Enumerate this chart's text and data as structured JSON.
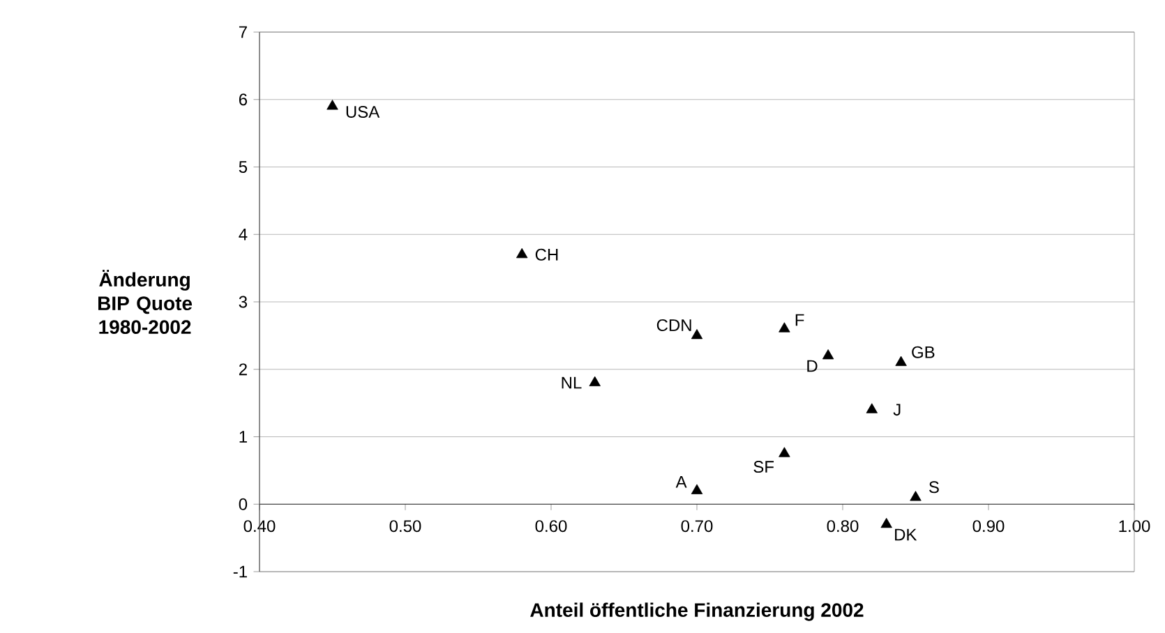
{
  "chart_data": {
    "type": "scatter",
    "xlabel": "Anteil öffentliche Finanzierung 2002",
    "ylabel": "Änderung BIP Quote 1980-2002",
    "x": [
      0.45,
      0.58,
      0.7,
      0.76,
      0.79,
      0.84,
      0.82,
      0.63,
      0.76,
      0.7,
      0.85,
      0.83
    ],
    "values": [
      5.9,
      3.7,
      2.5,
      2.6,
      2.2,
      2.1,
      1.4,
      1.8,
      0.75,
      0.2,
      0.1,
      -0.3
    ],
    "color": "#000000",
    "marker": "triangle",
    "grid": "y",
    "xlim": [
      0.4,
      1.0
    ],
    "xticks": [
      {
        "value": 0.4,
        "label": "0.40"
      },
      {
        "value": 0.5,
        "label": "0.50"
      },
      {
        "value": 0.6,
        "label": "0.60"
      },
      {
        "value": 0.7,
        "label": "0.70"
      },
      {
        "value": 0.8,
        "label": "0.80"
      },
      {
        "value": 0.9,
        "label": "0.90"
      },
      {
        "value": 1.0,
        "label": "1.00"
      }
    ],
    "ylim": [
      -1,
      7
    ],
    "yticks": [
      -1,
      0,
      1,
      2,
      3,
      4,
      5,
      6,
      7
    ],
    "annotations": [
      {
        "text": "USA",
        "x": 0.45,
        "y": 5.9
      },
      {
        "text": "CH",
        "x": 0.58,
        "y": 3.7
      },
      {
        "text": "CDN",
        "x": 0.7,
        "y": 2.5
      },
      {
        "text": "F",
        "x": 0.76,
        "y": 2.6
      },
      {
        "text": "D",
        "x": 0.79,
        "y": 2.2
      },
      {
        "text": "GB",
        "x": 0.84,
        "y": 2.1
      },
      {
        "text": "J",
        "x": 0.82,
        "y": 1.4
      },
      {
        "text": "NL",
        "x": 0.63,
        "y": 1.8
      },
      {
        "text": "SF",
        "x": 0.76,
        "y": 0.75
      },
      {
        "text": "A",
        "x": 0.7,
        "y": 0.2
      },
      {
        "text": "S",
        "x": 0.85,
        "y": 0.1
      },
      {
        "text": "DK",
        "x": 0.83,
        "y": -0.3
      }
    ]
  }
}
